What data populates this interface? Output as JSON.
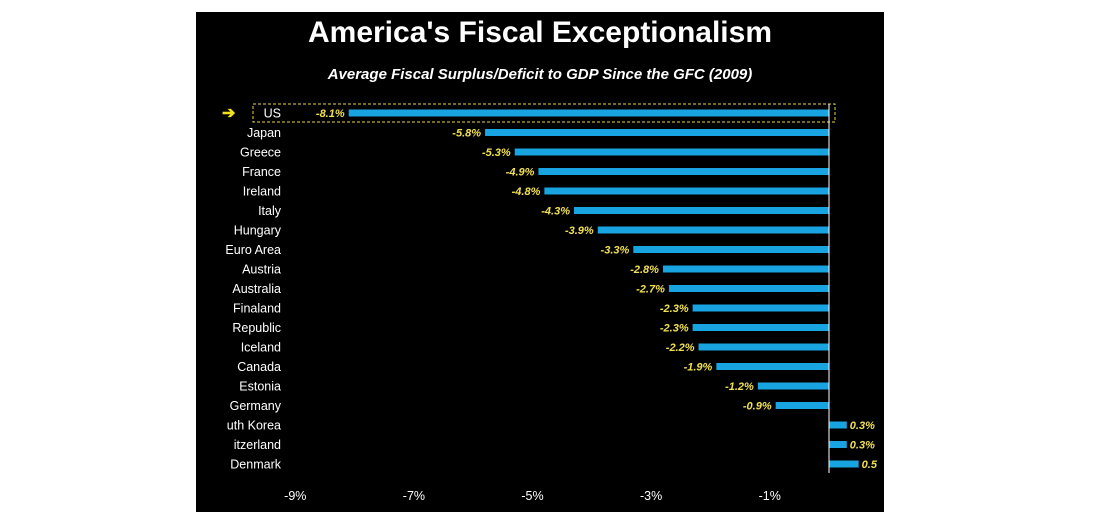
{
  "chart_data": {
    "type": "bar",
    "orientation": "horizontal",
    "title": "America's Fiscal Exceptionalism",
    "subtitle": "Average Fiscal Surplus/Deficit to GDP Since the GFC (2009)",
    "categories": [
      "US",
      "Japan",
      "Greece",
      "France",
      "Ireland",
      "Italy",
      "Hungary",
      "Euro Area",
      "Austria",
      "Australia",
      "Finaland",
      "Republic",
      "Iceland",
      "Canada",
      "Estonia",
      "Germany",
      "South Korea",
      "Switzerland",
      "Denmark"
    ],
    "display_categories": [
      "US",
      "Japan",
      "Greece",
      "France",
      "Ireland",
      "Italy",
      "Hungary",
      "Euro Area",
      "Austria",
      "Australia",
      "Finaland",
      "Republic",
      "Iceland",
      "Canada",
      "Estonia",
      "Germany",
      "uth Korea",
      "itzerland",
      "Denmark"
    ],
    "values": [
      -8.1,
      -5.8,
      -5.3,
      -4.9,
      -4.8,
      -4.3,
      -3.9,
      -3.3,
      -2.8,
      -2.7,
      -2.3,
      -2.3,
      -2.2,
      -1.9,
      -1.2,
      -0.9,
      0.3,
      0.3,
      0.5
    ],
    "labels": [
      "-8.1%",
      "-5.8%",
      "-5.3%",
      "-4.9%",
      "-4.8%",
      "-4.3%",
      "-3.9%",
      "-3.3%",
      "-2.8%",
      "-2.7%",
      "-2.3%",
      "-2.3%",
      "-2.2%",
      "-1.9%",
      "-1.2%",
      "-0.9%",
      "0.3%",
      "0.3%",
      "0.5"
    ],
    "xticks": [
      -9,
      -7,
      -5,
      -3,
      -1
    ],
    "xtick_labels": [
      "-9%",
      "-7%",
      "-5%",
      "-3%",
      "-1%"
    ],
    "xlim": [
      -9.4,
      0.9
    ],
    "highlight": "US",
    "highlight_marker": "➔",
    "colors": {
      "bar": "#18a4e0",
      "label": "#f0e050",
      "highlight_box": "#e8d44d",
      "arrow": "#f2e01c",
      "text": "#ffffff",
      "background": "#000000"
    }
  }
}
